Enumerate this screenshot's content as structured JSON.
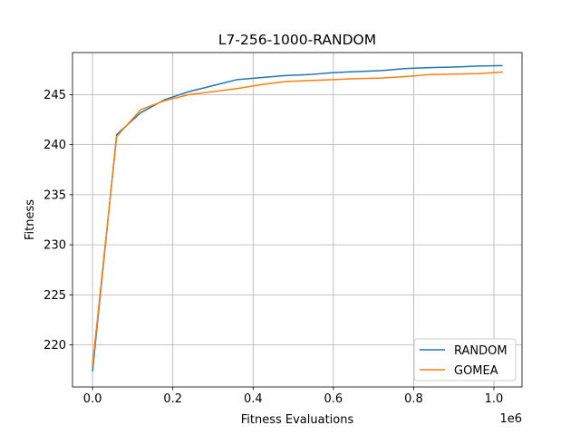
{
  "chart_data": {
    "type": "line",
    "title": "L7-256-1000-RANDOM",
    "xlabel": "Fitness Evaluations",
    "ylabel": "Fitness",
    "x_offset_label": "1e6",
    "xlim": [
      -0.05,
      1.07
    ],
    "ylim": [
      215.8,
      249.2
    ],
    "x_ticks": [
      0.0,
      0.2,
      0.4,
      0.6,
      0.8,
      1.0
    ],
    "x_tick_labels": [
      "0.0",
      "0.2",
      "0.4",
      "0.6",
      "0.8",
      "1.0"
    ],
    "y_ticks": [
      220,
      225,
      230,
      235,
      240,
      245
    ],
    "y_tick_labels": [
      "220",
      "225",
      "230",
      "235",
      "240",
      "245"
    ],
    "grid": true,
    "legend_position": "lower right",
    "series": [
      {
        "name": "RANDOM",
        "color": "#1f77b4",
        "x": [
          0.0,
          0.06,
          0.12,
          0.18,
          0.24,
          0.3,
          0.36,
          0.42,
          0.48,
          0.54,
          0.6,
          0.66,
          0.72,
          0.78,
          0.84,
          0.9,
          0.96,
          1.02
        ],
        "y": [
          217.4,
          241.0,
          243.2,
          244.5,
          245.3,
          245.9,
          246.5,
          246.7,
          246.9,
          247.0,
          247.2,
          247.3,
          247.4,
          247.6,
          247.7,
          247.75,
          247.85,
          247.9
        ]
      },
      {
        "name": "GOMEA",
        "color": "#ff7f0e",
        "x": [
          0.0,
          0.06,
          0.12,
          0.18,
          0.24,
          0.3,
          0.36,
          0.42,
          0.48,
          0.54,
          0.6,
          0.66,
          0.72,
          0.78,
          0.84,
          0.9,
          0.96,
          1.02
        ],
        "y": [
          218.0,
          240.8,
          243.5,
          244.4,
          245.0,
          245.3,
          245.6,
          246.0,
          246.3,
          246.4,
          246.5,
          246.6,
          246.65,
          246.8,
          247.0,
          247.05,
          247.1,
          247.25
        ]
      }
    ]
  }
}
